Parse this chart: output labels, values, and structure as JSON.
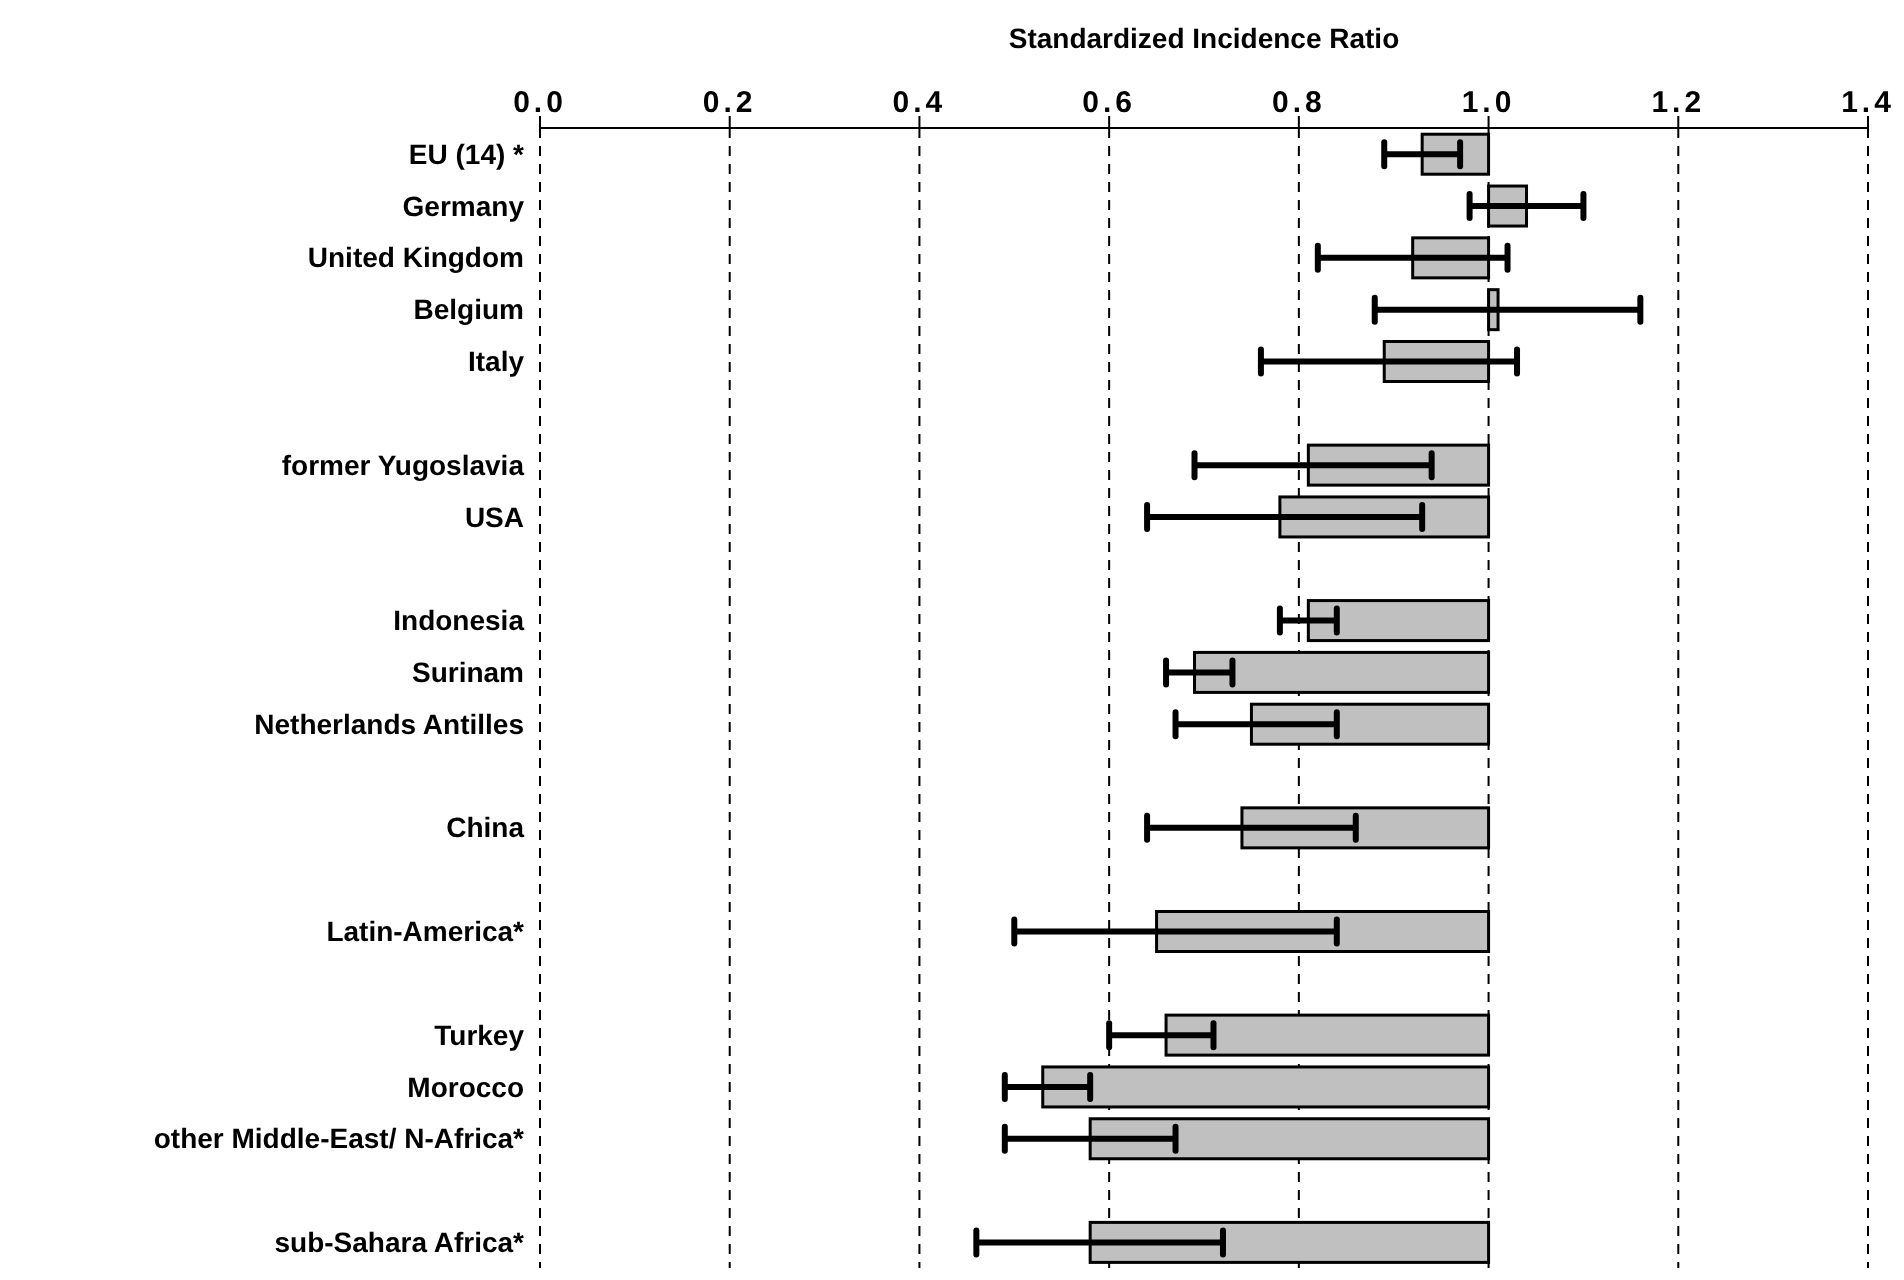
{
  "chart_data": {
    "type": "bar",
    "orientation": "horizontal",
    "xlabel": "Standardized Incidence Ratio",
    "categories": [
      "EU (14) *",
      "Germany",
      "United Kingdom",
      "Belgium",
      "Italy",
      null,
      "former Yugoslavia",
      "USA",
      null,
      "Indonesia",
      "Surinam",
      "Netherlands Antilles",
      null,
      "China",
      null,
      "Latin-America*",
      null,
      "Turkey",
      "Morocco",
      "other Middle-East/ N-Africa*",
      null,
      "sub-Sahara Africa*"
    ],
    "base": [
      1,
      1,
      1,
      1,
      1,
      null,
      1,
      1,
      null,
      1,
      1,
      1,
      null,
      1,
      null,
      1,
      null,
      1,
      1,
      1,
      null,
      1
    ],
    "values": [
      -0.07,
      0.04,
      -0.08,
      0.01,
      -0.11,
      null,
      -0.19,
      -0.22,
      null,
      -0.19,
      -0.31,
      -0.25,
      null,
      -0.26,
      null,
      -0.35,
      null,
      -0.34,
      -0.47,
      -0.42,
      null,
      -0.42
    ],
    "errors": [
      [
        0.89,
        0.97
      ],
      [
        0.98,
        1.1
      ],
      [
        0.82,
        1.02
      ],
      [
        0.88,
        1.16
      ],
      [
        0.76,
        1.03
      ],
      null,
      [
        0.69,
        0.94
      ],
      [
        0.64,
        0.93
      ],
      null,
      [
        0.78,
        0.84
      ],
      [
        0.66,
        0.73
      ],
      [
        0.67,
        0.84
      ],
      null,
      [
        0.64,
        0.86
      ],
      null,
      [
        0.5,
        0.84
      ],
      null,
      [
        0.6,
        0.71
      ],
      [
        0.49,
        0.58
      ],
      [
        0.49,
        0.67
      ],
      null,
      [
        0.46,
        0.72
      ]
    ],
    "color": "#c0c0c0",
    "xlim": [
      0,
      1.4
    ],
    "xticks": [
      {
        "value": 0,
        "label": "0.0"
      },
      0.2,
      0.4,
      0.6,
      0.8,
      {
        "value": 1,
        "label": "1.0"
      },
      1.2,
      1.4
    ],
    "grid": "x"
  }
}
